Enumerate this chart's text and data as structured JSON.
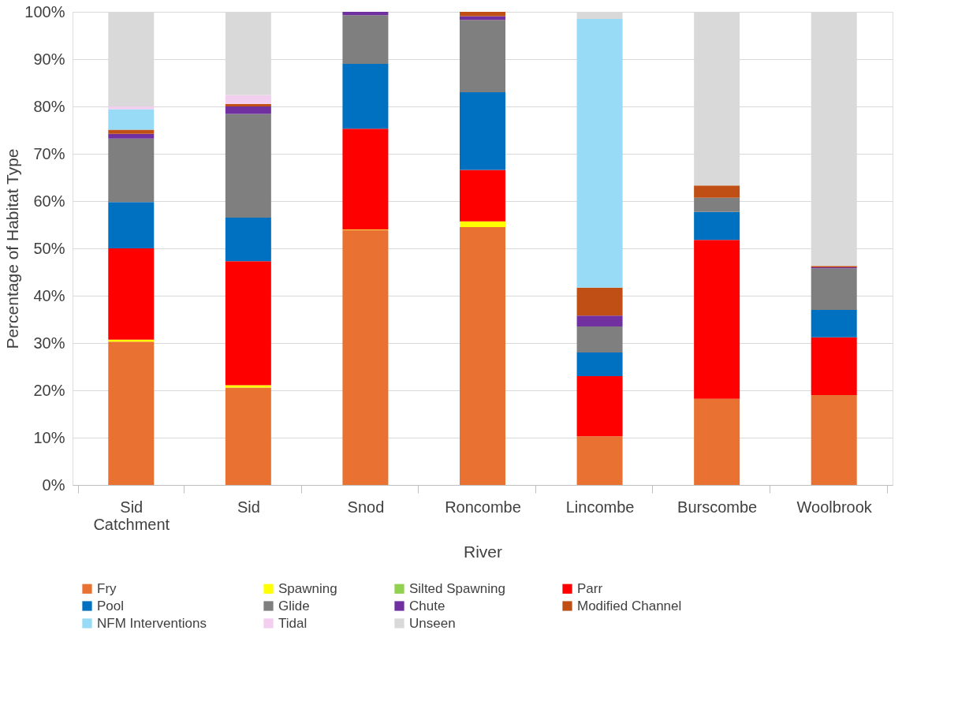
{
  "chart_data": {
    "type": "bar",
    "stacked": true,
    "xlabel": "River",
    "ylabel": "Percentage of Habitat Type",
    "categories": [
      "Sid Catchment",
      "Sid",
      "Snod",
      "Roncombe",
      "Lincombe",
      "Burscombe",
      "Woolbrook"
    ],
    "series": [
      {
        "name": "Fry",
        "color": "#e97132",
        "values": [
          30.3,
          20.6,
          53.9,
          54.5,
          10.3,
          18.2,
          19.0
        ]
      },
      {
        "name": "Spawning",
        "color": "#ffff00",
        "values": [
          0.4,
          0.5,
          0.1,
          1.2,
          0,
          0,
          0
        ]
      },
      {
        "name": "Silted Spawning",
        "color": "#92d050",
        "values": [
          0,
          0,
          0,
          0,
          0,
          0,
          0
        ]
      },
      {
        "name": "Parr",
        "color": "#ff0000",
        "values": [
          19.3,
          26.2,
          21.3,
          10.9,
          12.7,
          33.6,
          12.2
        ]
      },
      {
        "name": "Pool",
        "color": "#0070c0",
        "values": [
          9.8,
          9.2,
          13.7,
          16.4,
          5.0,
          5.9,
          5.8
        ]
      },
      {
        "name": "Glide",
        "color": "#7f7f7f",
        "values": [
          13.4,
          21.9,
          10.3,
          15.3,
          5.5,
          3.0,
          8.8
        ]
      },
      {
        "name": "Chute",
        "color": "#7030a0",
        "values": [
          1.0,
          1.6,
          0.7,
          0.8,
          2.3,
          0,
          0.2
        ]
      },
      {
        "name": "Modified Channel",
        "color": "#c04f15",
        "values": [
          0.9,
          0.5,
          0,
          0.9,
          5.9,
          2.6,
          0.3
        ]
      },
      {
        "name": "NFM Interventions",
        "color": "#97dbf7",
        "values": [
          4.3,
          0,
          0,
          0,
          56.8,
          0,
          0
        ]
      },
      {
        "name": "Tidal",
        "color": "#f2ceef",
        "values": [
          0.6,
          1.9,
          0,
          0,
          0,
          0,
          0
        ]
      },
      {
        "name": "Unseen",
        "color": "#d9d9d9",
        "values": [
          20.0,
          17.6,
          0,
          0,
          1.5,
          36.7,
          53.7
        ]
      }
    ],
    "ylim": [
      0,
      100
    ],
    "yticks": [
      {
        "value": 0,
        "label": "0%"
      },
      {
        "value": 10,
        "label": "10%"
      },
      {
        "value": 20,
        "label": "20%"
      },
      {
        "value": 30,
        "label": "30%"
      },
      {
        "value": 40,
        "label": "40%"
      },
      {
        "value": 50,
        "label": "50%"
      },
      {
        "value": 60,
        "label": "60%"
      },
      {
        "value": 70,
        "label": "70%"
      },
      {
        "value": 80,
        "label": "80%"
      },
      {
        "value": 90,
        "label": "90%"
      },
      {
        "value": 100,
        "label": "100%"
      }
    ],
    "grid": "y",
    "legend": "bottom"
  }
}
